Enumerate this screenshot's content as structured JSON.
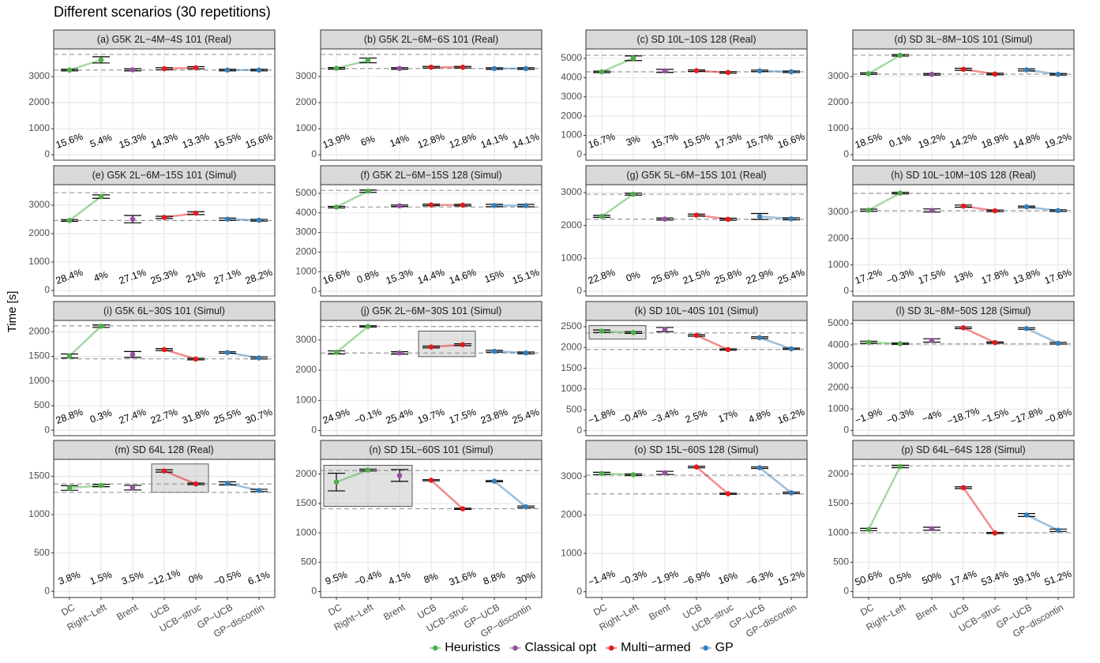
{
  "title": "Different scenarios (30 repetitions)",
  "ylabel": "Time [s]",
  "categories": [
    "DC",
    "Right−Left",
    "Brent",
    "UCB",
    "UCB−struc",
    "GP−UCB",
    "GP−discontin"
  ],
  "legend": [
    {
      "name": "Heuristics",
      "color": "#4daf4a",
      "members": [
        "DC",
        "Right−Left"
      ]
    },
    {
      "name": "Classical opt",
      "color": "#984ea3",
      "members": [
        "Brent"
      ]
    },
    {
      "name": "Multi−armed",
      "color": "#e41a1c",
      "members": [
        "UCB",
        "UCB−struc"
      ]
    },
    {
      "name": "GP",
      "color": "#377eb8",
      "members": [
        "GP−UCB",
        "GP−discontin"
      ]
    }
  ],
  "chart_data": [
    {
      "type": "line",
      "title": "(a) G5K 2L−4M−4S 101 (Real)",
      "ylim": [
        -210,
        4060
      ],
      "yticks": [
        0,
        1000,
        2000,
        3000
      ],
      "values": [
        3250,
        3640,
        3260,
        3300,
        3340,
        3250,
        3250
      ],
      "errors": [
        30,
        120,
        40,
        40,
        40,
        30,
        30
      ],
      "hlines": [
        3850,
        3250
      ],
      "labels": [
        "15.6%",
        "5.4%",
        "15.3%",
        "14.3%",
        "13.3%",
        "15.5%",
        "15.6%"
      ]
    },
    {
      "type": "line",
      "title": "(b) G5K 2L−6M−6S 101 (Real)",
      "ylim": [
        -210,
        4060
      ],
      "yticks": [
        0,
        1000,
        2000,
        3000
      ],
      "values": [
        3315,
        3620,
        3310,
        3357,
        3357,
        3307,
        3307
      ],
      "errors": [
        30,
        90,
        30,
        30,
        30,
        30,
        30
      ],
      "hlines": [
        3850,
        3310
      ],
      "labels": [
        "13.9%",
        "6%",
        "14%",
        "12.8%",
        "12.8%",
        "14.1%",
        "14.1%"
      ]
    },
    {
      "type": "line",
      "title": "(c) SD 10L−10S 128 (Real)",
      "ylim": [
        -290,
        5490
      ],
      "yticks": [
        0,
        1000,
        2000,
        3000,
        4000,
        5000
      ],
      "values": [
        4300,
        5005,
        4350,
        4360,
        4267,
        4350,
        4303
      ],
      "errors": [
        40,
        120,
        80,
        40,
        40,
        40,
        40
      ],
      "hlines": [
        5160,
        4300
      ],
      "labels": [
        "16.7%",
        "3%",
        "15.7%",
        "15.5%",
        "17.3%",
        "15.7%",
        "16.6%"
      ]
    },
    {
      "type": "line",
      "title": "(d) SD 3L−8M−10S 101 (Simul)",
      "ylim": [
        -210,
        4060
      ],
      "yticks": [
        0,
        1000,
        2000,
        3000
      ],
      "values": [
        3113,
        3816,
        3087,
        3278,
        3098,
        3255,
        3087
      ],
      "errors": [
        30,
        30,
        30,
        40,
        30,
        40,
        30
      ],
      "hlines": [
        3820,
        3090
      ],
      "labels": [
        "18.5%",
        "0.1%",
        "19.2%",
        "14.2%",
        "18.9%",
        "14.8%",
        "19.2%"
      ]
    },
    {
      "type": "line",
      "title": "(e) G5K 2L−6M−15S 101 (Simul)",
      "ylim": [
        -195,
        3720
      ],
      "yticks": [
        0,
        1000,
        2000,
        3000
      ],
      "values": [
        2463,
        3302,
        2508,
        2570,
        2718,
        2508,
        2470
      ],
      "errors": [
        30,
        60,
        130,
        40,
        50,
        40,
        30
      ],
      "hlines": [
        3440,
        2460
      ],
      "labels": [
        "28.4%",
        "4%",
        "27.1%",
        "25.3%",
        "21%",
        "27.1%",
        "28.2%"
      ]
    },
    {
      "type": "line",
      "title": "(f) G5K 2L−6M−15S 128 (Simul)",
      "ylim": [
        -240,
        5440
      ],
      "yticks": [
        0,
        1000,
        2000,
        3000,
        4000,
        5000
      ],
      "values": [
        4295,
        5109,
        4362,
        4408,
        4398,
        4378,
        4372
      ],
      "errors": [
        40,
        60,
        40,
        40,
        40,
        60,
        60
      ],
      "hlines": [
        5150,
        4300
      ],
      "labels": [
        "16.6%",
        "0.8%",
        "15.3%",
        "14.4%",
        "14.6%",
        "15%",
        "15.1%"
      ]
    },
    {
      "type": "line",
      "title": "(g) G5K 5L−6M−15S 101 (Real)",
      "ylim": [
        -145,
        3240
      ],
      "yticks": [
        0,
        1000,
        2000,
        3000
      ],
      "values": [
        2277,
        2950,
        2195,
        2316,
        2189,
        2274,
        2201
      ],
      "errors": [
        30,
        30,
        30,
        30,
        30,
        90,
        30
      ],
      "hlines": [
        2950,
        2190
      ],
      "labels": [
        "22.8%",
        "0%",
        "25.6%",
        "21.5%",
        "25.8%",
        "22.9%",
        "25.4%"
      ]
    },
    {
      "type": "line",
      "title": "(h) SD 10L−10M−10S 128 (Real)",
      "ylim": [
        -180,
        4050
      ],
      "yticks": [
        0,
        1000,
        2000,
        3000
      ],
      "values": [
        3080,
        3731,
        3069,
        3236,
        3058,
        3207,
        3065
      ],
      "errors": [
        40,
        30,
        60,
        40,
        30,
        30,
        30
      ],
      "hlines": [
        3720,
        3060
      ],
      "labels": [
        "17.2%",
        "−0.3%",
        "17.5%",
        "13%",
        "17.8%",
        "13.8%",
        "17.6%"
      ]
    },
    {
      "type": "line",
      "title": "(i) G5K 6L−30S 101 (Simul)",
      "ylim": [
        -110,
        2230
      ],
      "yticks": [
        0,
        500,
        1000,
        1500,
        2000
      ],
      "values": [
        1509,
        2114,
        1539,
        1639,
        1446,
        1579,
        1469
      ],
      "errors": [
        40,
        25,
        60,
        20,
        15,
        15,
        20
      ],
      "hlines": [
        2120,
        1450
      ],
      "labels": [
        "28.8%",
        "0.3%",
        "27.4%",
        "22.7%",
        "31.8%",
        "25.5%",
        "30.7%"
      ]
    },
    {
      "type": "line",
      "title": "(j) G5K 2L−6M−30S 101 (Simul)",
      "ylim": [
        -170,
        3650
      ],
      "yticks": [
        0,
        1000,
        2000,
        3000
      ],
      "values": [
        2591,
        3453,
        2574,
        2770,
        2846,
        2629,
        2574
      ],
      "errors": [
        50,
        20,
        40,
        30,
        30,
        30,
        30
      ],
      "hlines": [
        3450,
        2570
      ],
      "labels": [
        "24.9%",
        "−0.1%",
        "25.4%",
        "19.7%",
        "17.5%",
        "23.8%",
        "25.4%"
      ],
      "highlight": {
        "x": [
          "UCB",
          "UCB−struc"
        ],
        "y": [
          2450,
          3300
        ]
      }
    },
    {
      "type": "line",
      "title": "(k) SD 10L−40S 101 (Simul)",
      "ylim": [
        -120,
        2650
      ],
      "yticks": [
        0,
        500,
        1000,
        1500,
        2000,
        2500
      ],
      "values": [
        2392,
        2359,
        2430,
        2291,
        1950,
        2237,
        1969
      ],
      "errors": [
        30,
        20,
        50,
        20,
        15,
        20,
        15
      ],
      "hlines": [
        2350,
        1950
      ],
      "labels": [
        "−1.8%",
        "−0.4%",
        "−3.4%",
        "2.5%",
        "17%",
        "4.8%",
        "16.2%"
      ],
      "highlight": {
        "x": [
          "DC",
          "Right−Left"
        ],
        "y": [
          2200,
          2530
        ]
      }
    },
    {
      "type": "line",
      "title": "(l) SD 3L−8M−50S 128 (Simul)",
      "ylim": [
        -250,
        5150
      ],
      "yticks": [
        0,
        1000,
        2000,
        3000,
        4000,
        5000
      ],
      "values": [
        4127,
        4062,
        4212,
        4807,
        4111,
        4771,
        4082
      ],
      "errors": [
        50,
        30,
        80,
        40,
        30,
        40,
        40
      ],
      "hlines": [
        4050
      ],
      "labels": [
        "−1.9%",
        "−0.3%",
        "−4%",
        "−18.7%",
        "−1.5%",
        "−17.8%",
        "−0.8%"
      ]
    },
    {
      "type": "line",
      "title": "(m) SD 64L 128 (Real)",
      "ylim": [
        -80,
        1720
      ],
      "yticks": [
        0,
        500,
        1000,
        1500
      ],
      "values": [
        1347,
        1379,
        1351,
        1569,
        1400,
        1407,
        1315
      ],
      "errors": [
        30,
        15,
        30,
        15,
        10,
        20,
        15
      ],
      "hlines": [
        1400,
        1290
      ],
      "labels": [
        "3.8%",
        "1.5%",
        "3.5%",
        "−12.1%",
        "0%",
        "−0.5%",
        "6.1%"
      ],
      "highlight": {
        "x": [
          "UCB",
          "UCB−struc"
        ],
        "y": [
          1290,
          1660
        ]
      }
    },
    {
      "type": "line",
      "title": "(n) SD 15L−60S 101 (Simul)",
      "ylim": [
        -100,
        2250
      ],
      "yticks": [
        0,
        500,
        1000,
        1500,
        2000
      ],
      "values": [
        1864,
        2068,
        1976,
        1895,
        1409,
        1879,
        1442
      ],
      "errors": [
        150,
        15,
        100,
        10,
        10,
        10,
        15
      ],
      "hlines": [
        2060,
        1410
      ],
      "labels": [
        "9.5%",
        "−0.4%",
        "4.1%",
        "8%",
        "31.6%",
        "8.8%",
        "30%"
      ],
      "highlight": {
        "x": [
          "DC",
          "Brent"
        ],
        "y": [
          1450,
          2150
        ]
      }
    },
    {
      "type": "line",
      "title": "(o) SD 15L−60S 128 (Simul)",
      "ylim": [
        -150,
        3450
      ],
      "yticks": [
        0,
        1000,
        2000,
        3000
      ],
      "values": [
        3083,
        3049,
        3098,
        3250,
        2554,
        3232,
        2578
      ],
      "errors": [
        30,
        20,
        40,
        20,
        15,
        20,
        20
      ],
      "hlines": [
        3040,
        2550
      ],
      "labels": [
        "−1.4%",
        "−0.3%",
        "−1.9%",
        "−6.9%",
        "16%",
        "−6.3%",
        "15.2%"
      ]
    },
    {
      "type": "line",
      "title": "(p) SD 64L−64S 128 (Simul)",
      "ylim": [
        -100,
        2250
      ],
      "yticks": [
        0,
        500,
        1000,
        1500,
        2000
      ],
      "values": [
        1057,
        2129,
        1070,
        1768,
        997,
        1303,
        1044
      ],
      "errors": [
        20,
        20,
        25,
        15,
        10,
        25,
        20
      ],
      "hlines": [
        2140,
        1000
      ],
      "labels": [
        "50.6%",
        "0.5%",
        "50%",
        "17.4%",
        "53.4%",
        "39.1%",
        "51.2%"
      ]
    }
  ]
}
